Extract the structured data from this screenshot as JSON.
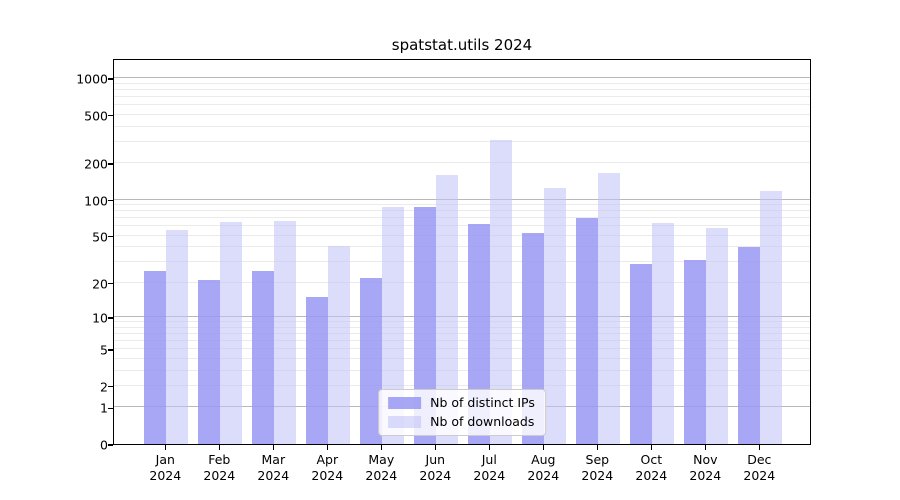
{
  "title": "spatstat.utils 2024",
  "chart_data": {
    "type": "bar",
    "title": "spatstat.utils 2024",
    "y_scale": "log1p",
    "grid": true,
    "legend_position": "lower center",
    "categories": [
      "Jan",
      "Feb",
      "Mar",
      "Apr",
      "May",
      "Jun",
      "Jul",
      "Aug",
      "Sep",
      "Oct",
      "Nov",
      "Dec"
    ],
    "x_tick_second_line": "2024",
    "series": [
      {
        "name": "Nb of distinct IPs",
        "color": "#a8a8f5",
        "values": [
          25,
          21,
          25,
          15,
          22,
          87,
          63,
          53,
          70,
          29,
          31,
          40
        ]
      },
      {
        "name": "Nb of downloads",
        "color": "#dcdcf9",
        "values": [
          56,
          65,
          67,
          41,
          87,
          160,
          310,
          125,
          165,
          64,
          58,
          117
        ]
      }
    ],
    "y_tick_labels": [
      "0",
      "1",
      "2",
      "5",
      "10",
      "20",
      "50",
      "100",
      "200",
      "500",
      "1000"
    ],
    "y_tick_values": [
      0,
      1,
      2,
      5,
      10,
      20,
      50,
      100,
      200,
      500,
      1000
    ],
    "y_grid_major": [
      1,
      10,
      100,
      1000
    ],
    "y_grid_minor": [
      2,
      3,
      4,
      5,
      6,
      7,
      8,
      9,
      20,
      30,
      40,
      50,
      60,
      70,
      80,
      90,
      200,
      300,
      400,
      500,
      600,
      700,
      800,
      900
    ],
    "ylim": [
      0,
      1460
    ],
    "xlabel": "",
    "ylabel": ""
  },
  "colors": {
    "bar_distinct_ips": "#a8a8f5",
    "bar_downloads": "#dcdcf9",
    "grid_major": "#b8b8b8",
    "grid_minor": "#ebebeb",
    "spine": "#000000",
    "background": "#ffffff"
  }
}
